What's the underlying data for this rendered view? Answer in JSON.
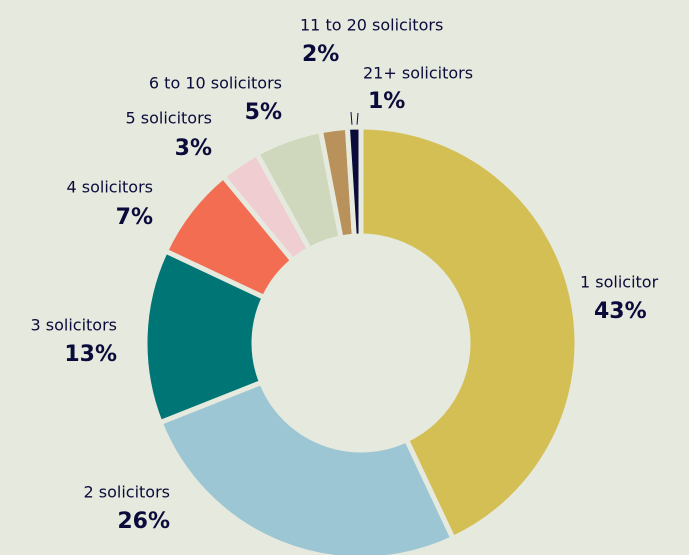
{
  "chart_data": {
    "type": "donut",
    "categories": [
      "1 solicitor",
      "2 solicitors",
      "3 solicitors",
      "4 solicitors",
      "5 solicitors",
      "6 to 10 solicitors",
      "11 to 20 solicitors",
      "21+ solicitors"
    ],
    "values": [
      43,
      26,
      13,
      7,
      3,
      5,
      2,
      1
    ],
    "value_labels": [
      "43%",
      "26%",
      "13%",
      "7%",
      "3%",
      "5%",
      "2%",
      "1%"
    ],
    "colors": [
      "#d4bf55",
      "#9cc6d4",
      "#007575",
      "#f26d52",
      "#f0cdd0",
      "#cfd8bd",
      "#b8925a",
      "#0b0b3b"
    ]
  }
}
